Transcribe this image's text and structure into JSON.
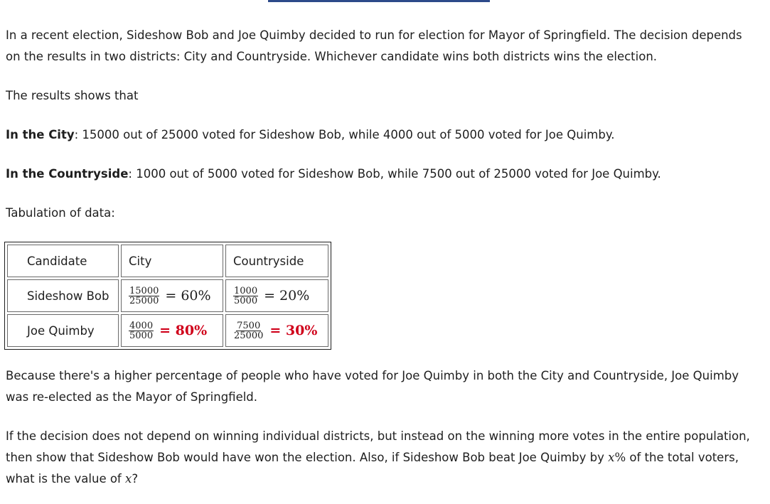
{
  "intro": "In a recent election, Sideshow Bob and Joe Quimby decided to run for election for Mayor of Springfield. The decision depends on the results in two districts: City and Countryside. Whichever candidate wins both districts wins the election.",
  "results_intro": "The results shows that",
  "city": {
    "label": "In the City",
    "text": ": 15000 out of 25000 voted for Sideshow Bob, while 4000 out of 5000 voted for Joe Quimby."
  },
  "countryside": {
    "label": "In the Countryside",
    "text": ": 1000 out of 5000 voted for Sideshow Bob, while 7500 out of 25000 voted for Joe Quimby."
  },
  "tabulation_label": "Tabulation of data:",
  "table": {
    "headers": [
      "Candidate",
      "City",
      "Countryside"
    ],
    "rows": [
      {
        "candidate": "Sideshow Bob",
        "city": {
          "num": "15000",
          "den": "25000",
          "eq": "= 60%",
          "highlight": false
        },
        "countryside": {
          "num": "1000",
          "den": "5000",
          "eq": "= 20%",
          "highlight": false
        }
      },
      {
        "candidate": "Joe Quimby",
        "city": {
          "num": "4000",
          "den": "5000",
          "eq": "= 80%",
          "highlight": true
        },
        "countryside": {
          "num": "7500",
          "den": "25000",
          "eq": "= 30%",
          "highlight": true
        }
      }
    ]
  },
  "conclusion": "Because there's a higher percentage of people who have voted for Joe Quimby in both the City and Countryside, Joe Quimby was re-elected as the Mayor of Springfield.",
  "question": {
    "part1": "If the decision does not depend on winning individual districts, but instead on the winning more votes in the entire population, then show that Sideshow Bob would have won the election. Also, if Sideshow Bob beat Joe Quimby by ",
    "var1": "x",
    "pct": "%",
    "part2": " of the total voters, what is the value of ",
    "var2": "x",
    "end": "?"
  },
  "colors": {
    "highlight": "#d0021b",
    "topbar": "#2d4a8a"
  }
}
